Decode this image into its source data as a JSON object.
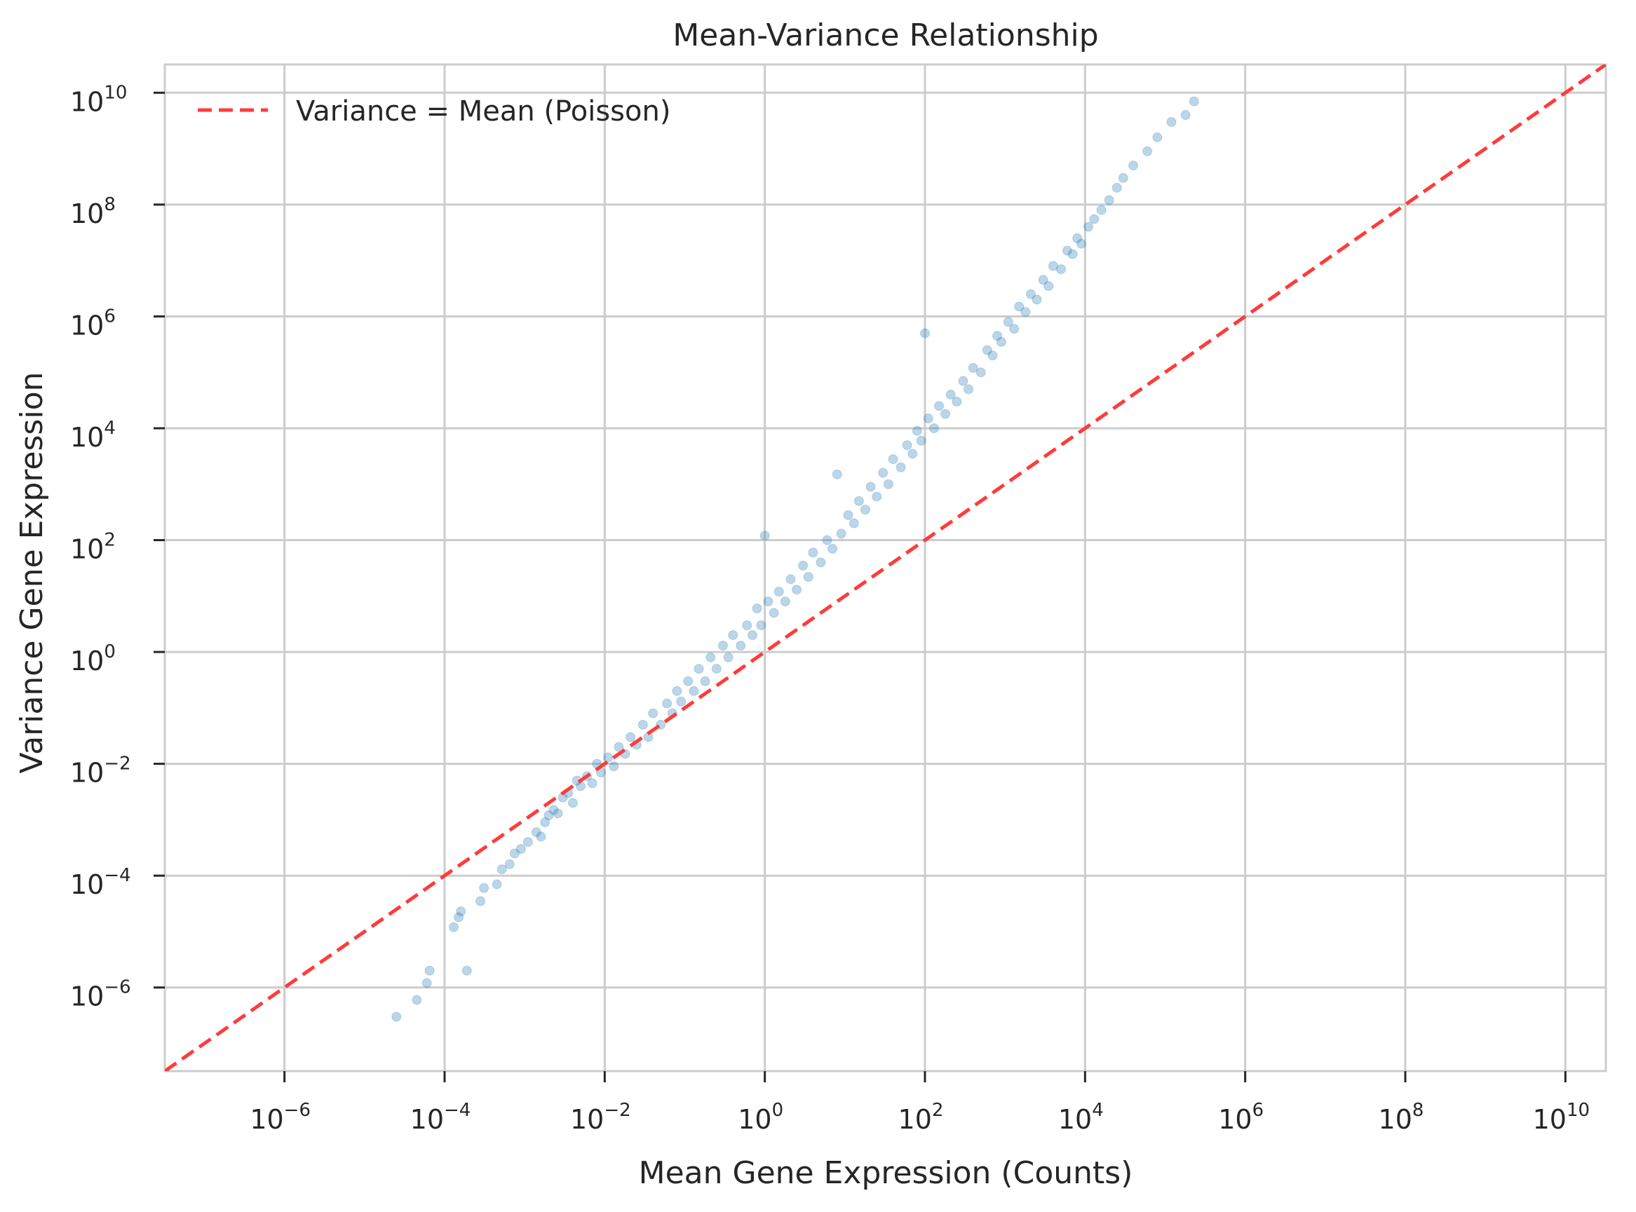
{
  "chart_data": {
    "type": "scatter",
    "title": "Mean-Variance Relationship",
    "xlabel": "Mean Gene Expression (Counts)",
    "ylabel": "Variance Gene Expression",
    "x_scale": "log",
    "y_scale": "log",
    "xlim": [
      3.2e-08,
      32000000000.0
    ],
    "ylim": [
      3.2e-08,
      32000000000.0
    ],
    "x_ticks": [
      {
        "value": 1e-06,
        "base": "10",
        "exp": "−6"
      },
      {
        "value": 0.0001,
        "base": "10",
        "exp": "−4"
      },
      {
        "value": 0.01,
        "base": "10",
        "exp": "−2"
      },
      {
        "value": 1,
        "base": "10",
        "exp": "0"
      },
      {
        "value": 100.0,
        "base": "10",
        "exp": "2"
      },
      {
        "value": 10000.0,
        "base": "10",
        "exp": "4"
      },
      {
        "value": 1000000.0,
        "base": "10",
        "exp": "6"
      },
      {
        "value": 100000000.0,
        "base": "10",
        "exp": "8"
      },
      {
        "value": 10000000000.0,
        "base": "10",
        "exp": "10"
      }
    ],
    "y_ticks": [
      {
        "value": 1e-06,
        "base": "10",
        "exp": "−6"
      },
      {
        "value": 0.0001,
        "base": "10",
        "exp": "−4"
      },
      {
        "value": 0.01,
        "base": "10",
        "exp": "−2"
      },
      {
        "value": 1,
        "base": "10",
        "exp": "0"
      },
      {
        "value": 100.0,
        "base": "10",
        "exp": "2"
      },
      {
        "value": 10000.0,
        "base": "10",
        "exp": "4"
      },
      {
        "value": 1000000.0,
        "base": "10",
        "exp": "6"
      },
      {
        "value": 100000000.0,
        "base": "10",
        "exp": "8"
      },
      {
        "value": 10000000000.0,
        "base": "10",
        "exp": "10"
      }
    ],
    "grid": true,
    "legend_position": "top-left",
    "series": [
      {
        "kind": "scatter",
        "color": "#1f77b4",
        "alpha": 0.3,
        "points": [
          [
            2.5e-05,
            3e-07
          ],
          [
            4.5e-05,
            6e-07
          ],
          [
            6e-05,
            1.2e-06
          ],
          [
            6.5e-05,
            2e-06
          ],
          [
            0.00019,
            2e-06
          ],
          [
            0.00013,
            1.2e-05
          ],
          [
            0.00016,
            2.3e-05
          ],
          [
            0.00015,
            1.8e-05
          ],
          [
            0.00028,
            3.5e-05
          ],
          [
            0.00031,
            6e-05
          ],
          [
            0.00045,
            7e-05
          ],
          [
            0.00052,
            0.00013
          ],
          [
            0.00065,
            0.00016
          ],
          [
            0.00075,
            0.00025
          ],
          [
            0.0009,
            0.0003
          ],
          [
            0.0011,
            0.0004
          ],
          [
            0.0014,
            0.0006
          ],
          [
            0.0016,
            0.0005
          ],
          [
            0.0018,
            0.0009
          ],
          [
            0.002,
            0.0012
          ],
          [
            0.0023,
            0.0015
          ],
          [
            0.0026,
            0.0013
          ],
          [
            0.003,
            0.0025
          ],
          [
            0.0035,
            0.003
          ],
          [
            0.004,
            0.002
          ],
          [
            0.0045,
            0.005
          ],
          [
            0.005,
            0.004
          ],
          [
            0.006,
            0.006
          ],
          [
            0.007,
            0.0045
          ],
          [
            0.008,
            0.01
          ],
          [
            0.009,
            0.007
          ],
          [
            0.011,
            0.013
          ],
          [
            0.013,
            0.009
          ],
          [
            0.015,
            0.02
          ],
          [
            0.018,
            0.015
          ],
          [
            0.021,
            0.03
          ],
          [
            0.025,
            0.022
          ],
          [
            0.03,
            0.05
          ],
          [
            0.035,
            0.03
          ],
          [
            0.04,
            0.08
          ],
          [
            0.05,
            0.05
          ],
          [
            0.06,
            0.12
          ],
          [
            0.07,
            0.08
          ],
          [
            0.08,
            0.2
          ],
          [
            0.09,
            0.13
          ],
          [
            0.11,
            0.3
          ],
          [
            0.13,
            0.2
          ],
          [
            0.15,
            0.5
          ],
          [
            0.18,
            0.3
          ],
          [
            0.21,
            0.8
          ],
          [
            0.25,
            0.5
          ],
          [
            0.3,
            1.3
          ],
          [
            0.35,
            0.8
          ],
          [
            0.4,
            2.0
          ],
          [
            0.5,
            1.3
          ],
          [
            0.6,
            3.0
          ],
          [
            0.7,
            2.0
          ],
          [
            0.8,
            6.0
          ],
          [
            0.9,
            3.0
          ],
          [
            1.0,
            120.0
          ],
          [
            1.1,
            8.0
          ],
          [
            1.3,
            5.0
          ],
          [
            1.5,
            12.0
          ],
          [
            1.8,
            8.0
          ],
          [
            2.1,
            20.0
          ],
          [
            2.5,
            13.0
          ],
          [
            3.0,
            35.0
          ],
          [
            3.5,
            22.0
          ],
          [
            4.0,
            60.0
          ],
          [
            5.0,
            40.0
          ],
          [
            6.0,
            100.0
          ],
          [
            7.0,
            70.0
          ],
          [
            8.0,
            1500.0
          ],
          [
            9.0,
            130.0
          ],
          [
            11.0,
            280.0
          ],
          [
            13.0,
            200.0
          ],
          [
            15.0,
            500.0
          ],
          [
            18.0,
            350.0
          ],
          [
            21.0,
            900.0
          ],
          [
            25.0,
            600.0
          ],
          [
            30.0,
            1600.0
          ],
          [
            35.0,
            1000.0
          ],
          [
            40.0,
            2800.0
          ],
          [
            50.0,
            2000.0
          ],
          [
            60.0,
            5000.0
          ],
          [
            70.0,
            3500.0
          ],
          [
            80.0,
            9000.0
          ],
          [
            90.0,
            6000.0
          ],
          [
            100.0,
            500000.0
          ],
          [
            110.0,
            15000.0
          ],
          [
            130.0,
            10000.0
          ],
          [
            150.0,
            25000.0
          ],
          [
            180.0,
            18000.0
          ],
          [
            210.0,
            40000.0
          ],
          [
            250.0,
            30000.0
          ],
          [
            300.0,
            70000.0
          ],
          [
            350.0,
            50000.0
          ],
          [
            400.0,
            120000.0
          ],
          [
            500.0,
            100000.0
          ],
          [
            600.0,
            250000.0
          ],
          [
            700.0,
            200000.0
          ],
          [
            800.0,
            450000.0
          ],
          [
            900.0,
            350000.0
          ],
          [
            1100.0,
            800000.0
          ],
          [
            1300.0,
            600000.0
          ],
          [
            1500.0,
            1500000.0
          ],
          [
            1800.0,
            1200000.0
          ],
          [
            2100.0,
            2500000.0
          ],
          [
            2500.0,
            2000000.0
          ],
          [
            3000.0,
            4500000.0
          ],
          [
            3500.0,
            3500000.0
          ],
          [
            4000.0,
            8000000.0
          ],
          [
            5000.0,
            7000000.0
          ],
          [
            6000.0,
            15000000.0
          ],
          [
            7000.0,
            13000000.0
          ],
          [
            8000.0,
            25000000.0
          ],
          [
            9000.0,
            20000000.0
          ],
          [
            11000.0,
            40000000.0
          ],
          [
            13000.0,
            55000000.0
          ],
          [
            16000.0,
            80000000.0
          ],
          [
            20000.0,
            120000000.0
          ],
          [
            25000.0,
            200000000.0
          ],
          [
            30000.0,
            300000000.0
          ],
          [
            40000.0,
            500000000.0
          ],
          [
            60000.0,
            900000000.0
          ],
          [
            80000.0,
            1600000000.0
          ],
          [
            120000.0,
            3000000000.0
          ],
          [
            180000.0,
            4000000000.0
          ],
          [
            230000.0,
            7000000000.0
          ]
        ]
      }
    ],
    "reference_line": {
      "label": "Variance = Mean (Poisson)",
      "color": "#ff3b3b",
      "style": "dashed",
      "from": [
        3.2e-08,
        3.2e-08
      ],
      "to": [
        32000000000.0,
        32000000000.0
      ]
    }
  }
}
